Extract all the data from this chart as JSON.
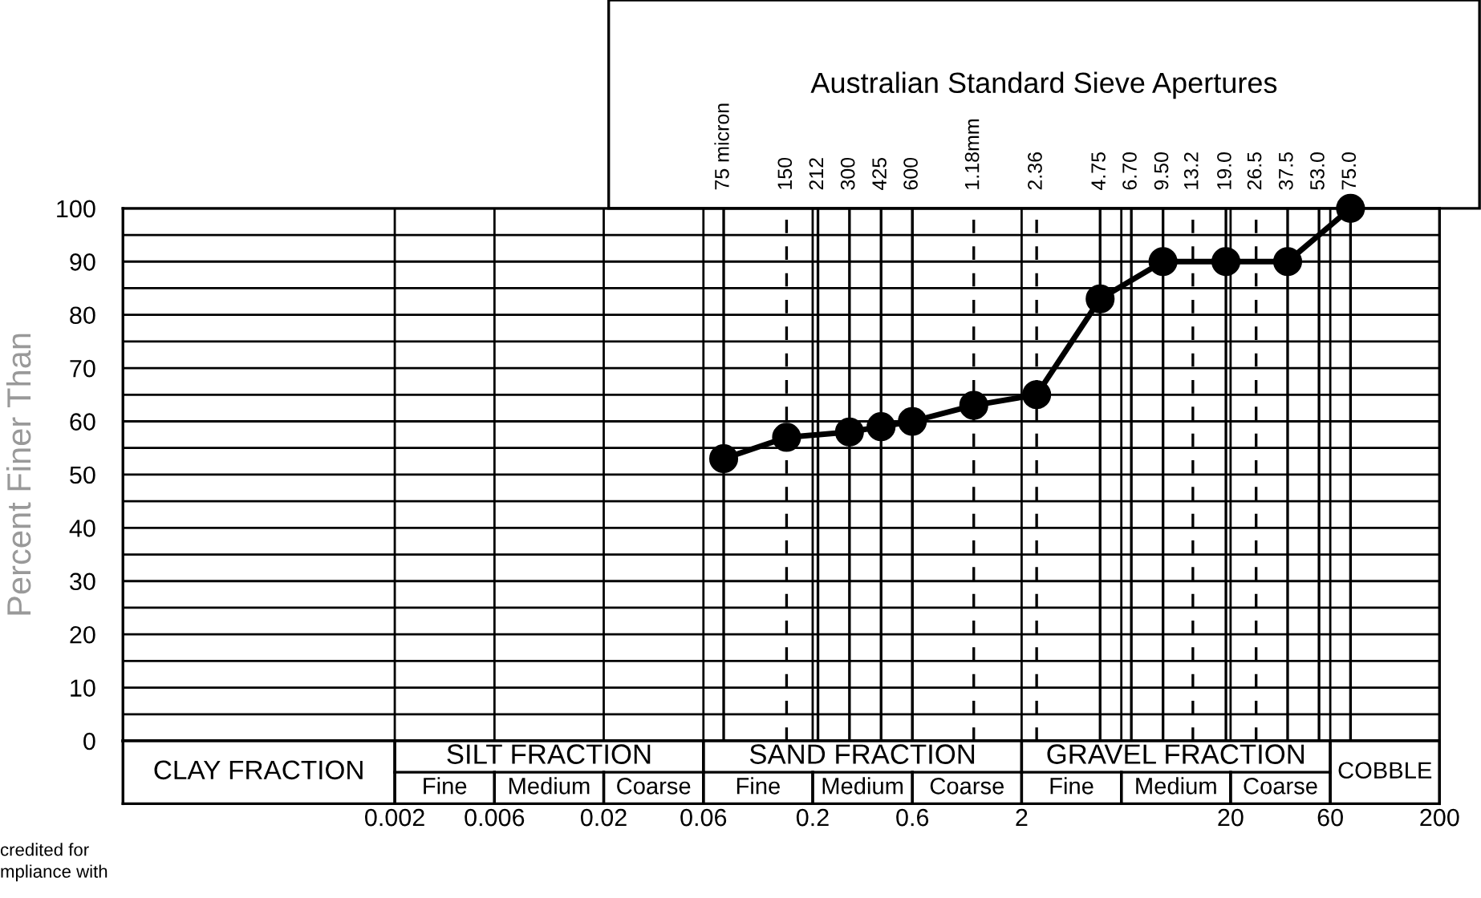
{
  "chart_data": {
    "type": "line",
    "title": "Australian Standard Sieve Apertures",
    "ylabel": "Percent Finer Than",
    "x": [
      0.075,
      0.15,
      0.3,
      0.425,
      0.6,
      1.18,
      2.36,
      4.75,
      9.5,
      19,
      37.5,
      75
    ],
    "series": [
      {
        "color": "#000000",
        "values": [
          53,
          57,
          58,
          59,
          60,
          63,
          65,
          83,
          90,
          90,
          90,
          100
        ]
      }
    ],
    "log": "x",
    "xlim": [
      0.0001,
      200
    ],
    "ylim": [
      0,
      100
    ],
    "xticks": [
      0.002,
      0.006,
      0.02,
      0.06,
      0.2,
      0.6,
      2,
      {
        "value": 6,
        "label": null
      },
      20,
      60,
      200
    ],
    "yticks": [
      0,
      {
        "value": 5,
        "label": null
      },
      10,
      {
        "value": 15,
        "label": null
      },
      20,
      {
        "value": 25,
        "label": null
      },
      30,
      {
        "value": 35,
        "label": null
      },
      40,
      {
        "value": 45,
        "label": null
      },
      50,
      {
        "value": 55,
        "label": null
      },
      60,
      {
        "value": 65,
        "label": null
      },
      70,
      {
        "value": 75,
        "label": null
      },
      80,
      {
        "value": 85,
        "label": null
      },
      90,
      {
        "value": 95,
        "label": null
      },
      100
    ],
    "ref_lines": [
      {
        "axis": "x",
        "value": 0.075,
        "label": "75 micron",
        "line_style": "solid"
      },
      {
        "axis": "x",
        "value": 0.15,
        "label": "150",
        "line_style": "dashed"
      },
      {
        "axis": "x",
        "value": 0.212,
        "label": "212",
        "line_style": "solid"
      },
      {
        "axis": "x",
        "value": 0.3,
        "label": "300",
        "line_style": "solid"
      },
      {
        "axis": "x",
        "value": 0.425,
        "label": "425",
        "line_style": "solid"
      },
      {
        "axis": "x",
        "value": 0.6,
        "label": "600",
        "line_style": "solid"
      },
      {
        "axis": "x",
        "value": 1.18,
        "label": "1.18mm",
        "line_style": "dashed"
      },
      {
        "axis": "x",
        "value": 2.36,
        "label": "2.36",
        "line_style": "dashed"
      },
      {
        "axis": "x",
        "value": 4.75,
        "label": "4.75",
        "line_style": "solid"
      },
      {
        "axis": "x",
        "value": 6.7,
        "label": "6.70",
        "line_style": "solid"
      },
      {
        "axis": "x",
        "value": 9.5,
        "label": "9.50",
        "line_style": "solid"
      },
      {
        "axis": "x",
        "value": 13.2,
        "label": "13.2",
        "line_style": "dashed"
      },
      {
        "axis": "x",
        "value": 19,
        "label": "19.0",
        "line_style": "solid"
      },
      {
        "axis": "x",
        "value": 26.5,
        "label": "26.5",
        "line_style": "dashed"
      },
      {
        "axis": "x",
        "value": 37.5,
        "label": "37.5",
        "line_style": "solid"
      },
      {
        "axis": "x",
        "value": 53,
        "label": "53.0",
        "line_style": "solid"
      },
      {
        "axis": "x",
        "value": 75,
        "label": "75.0",
        "line_style": "solid"
      }
    ],
    "grid": true,
    "marker": "circle",
    "line_style": "solid",
    "annotations": [
      "CLAY FRACTION",
      "SILT FRACTION",
      "Fine",
      "Medium",
      "Coarse",
      "SAND FRACTION",
      "Fine",
      "Medium",
      "Coarse",
      "GRAVEL FRACTION",
      "Fine",
      "Medium",
      "Coarse",
      "COBBLE",
      "credited for\nmpliance with"
    ]
  }
}
